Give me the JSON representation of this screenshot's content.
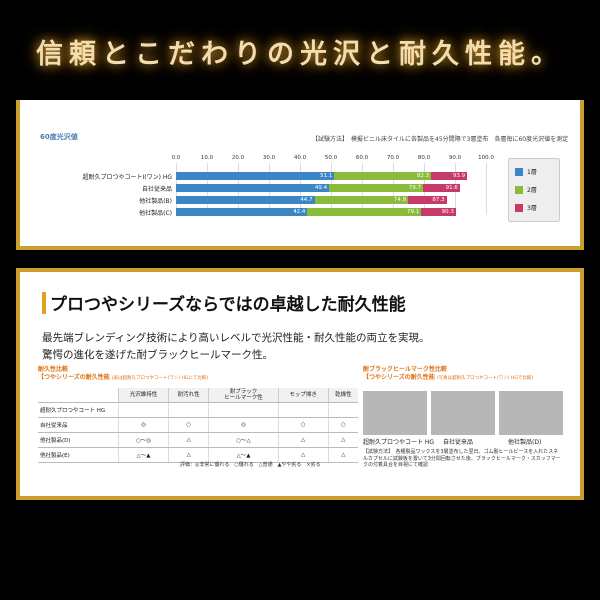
{
  "banner": {
    "title": "信頼とこだわりの光沢と耐久性能。"
  },
  "gloss_chart": {
    "heading": "60度光沢値",
    "method": "【試験方法】　模擬ビニル床タイルに各製品を45分間隔で3層塗布　各層毎に60度光沢値を測定",
    "colors": {
      "layer1": "#3b86c4",
      "layer2": "#8bbb3b",
      "layer3": "#c63a68"
    },
    "legend": [
      "1層",
      "2層",
      "3層"
    ]
  },
  "chart_data": {
    "type": "bar",
    "title": "60度光沢値",
    "orientation": "horizontal",
    "stacked": false,
    "xlim": [
      0,
      100
    ],
    "ticks": [
      "0.0",
      "10.0",
      "20.0",
      "30.0",
      "40.0",
      "50.0",
      "60.0",
      "70.0",
      "80.0",
      "90.0",
      "100.0"
    ],
    "categories": [
      "超耐久プロつやコートⅠ(ワン) HG",
      "自社従来品",
      "他社製品(B)",
      "他社製品(C)"
    ],
    "series": [
      {
        "name": "1層",
        "values": [
          51.1,
          49.4,
          44.7,
          42.4
        ]
      },
      {
        "name": "2層",
        "values": [
          82.3,
          79.7,
          74.9,
          79.1
        ]
      },
      {
        "name": "3層",
        "values": [
          93.9,
          91.6,
          87.3,
          90.3
        ]
      }
    ]
  },
  "feature": {
    "heading": "プロつやシリーズならではの卓越した耐久性能",
    "intro_line1": "最先端ブレンディング技術により高いレベルで光沢性能・耐久性能の両立を実現。",
    "intro_line2": "驚愕の進化を遂げた耐ブラックヒールマーク性。"
  },
  "durability": {
    "label1": "耐久性比較",
    "label2": "【つやシリーズの耐久性能",
    "label2_small": "(表は超耐久プロつやコート(ワン) HGにて比較)",
    "columns": [
      "光沢維持性",
      "耐汚れ性",
      "耐ブラック\nヒールマーク性",
      "モップ掃き",
      "乾燥性"
    ],
    "rows": [
      {
        "name": "超耐久プロつやコート HG",
        "cells": [
          "",
          "",
          "",
          "",
          ""
        ]
      },
      {
        "name": "自社従来品",
        "cells": [
          "◎",
          "○",
          "◎",
          "○",
          "○"
        ]
      },
      {
        "name": "他社製品(D)",
        "cells": [
          "○〜◎",
          "△",
          "○〜△",
          "△",
          "△"
        ]
      },
      {
        "name": "他社製品(E)",
        "cells": [
          "△〜▲",
          "△",
          "△〜▲",
          "△",
          "△"
        ]
      }
    ],
    "legend_note": "評価：◎非常に優れる　○優れる　△普通　▲やや劣る　×劣る"
  },
  "heelmark": {
    "label1": "耐ブラックヒールマーク性比較",
    "label2": "【つやシリーズの耐久性能",
    "label2_small": "(写真は超耐久プロつやコート(ワン) HGで比較)",
    "photos": [
      "超耐久プロつやコート HG",
      "自社従来品",
      "他社製品(D)"
    ],
    "note": "【試験方法】　各種製品ワックスを3層塗布した翌日、ゴム製ヒールピースを入れたスネルカプセルに試験板を置いて3分間回転させた後、ブラックヒールマーク・スカッフマークの付着具合を目視にて確認"
  }
}
